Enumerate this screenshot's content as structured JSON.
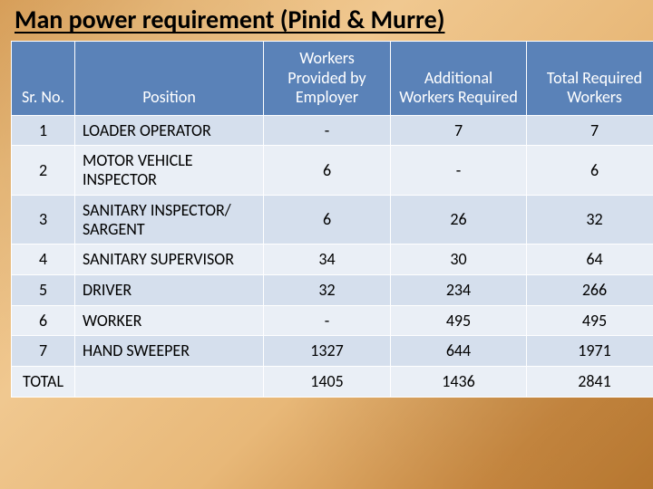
{
  "title": "Man power requirement (Pinid & Murre)",
  "table": {
    "columns": [
      {
        "key": "sr",
        "label": "Sr. No.",
        "class": "col-sr"
      },
      {
        "key": "pos",
        "label": "Position",
        "class": "col-pos"
      },
      {
        "key": "w1",
        "label": "Workers Provided by Employer",
        "class": "col-w1"
      },
      {
        "key": "w2",
        "label": "Additional Workers Required",
        "class": "col-w2"
      },
      {
        "key": "w3",
        "label": "Total Required Workers",
        "class": "col-w3"
      }
    ],
    "rows": [
      {
        "sr": "1",
        "pos": "LOADER OPERATOR",
        "w1": "-",
        "w2": "7",
        "w3": "7"
      },
      {
        "sr": "2",
        "pos": "MOTOR VEHICLE INSPECTOR",
        "w1": "6",
        "w2": "-",
        "w3": "6"
      },
      {
        "sr": "3",
        "pos": "SANITARY INSPECTOR/ SARGENT",
        "w1": "6",
        "w2": "26",
        "w3": "32"
      },
      {
        "sr": "4",
        "pos": "SANITARY SUPERVISOR",
        "w1": "34",
        "w2": "30",
        "w3": "64"
      },
      {
        "sr": "5",
        "pos": "DRIVER",
        "w1": "32",
        "w2": "234",
        "w3": "266"
      },
      {
        "sr": "6",
        "pos": "WORKER",
        "w1": "-",
        "w2": "495",
        "w3": "495"
      },
      {
        "sr": "7",
        "pos": "HAND SWEEPER",
        "w1": "1327",
        "w2": "644",
        "w3": "1971"
      }
    ],
    "total": {
      "sr": "TOTAL",
      "pos": "",
      "w1": "1405",
      "w2": "1436",
      "w3": "2841"
    },
    "header_bg": "#5a82b8",
    "row_odd_bg": "#d5dfed",
    "row_even_bg": "#eaeff6",
    "border_color": "#ffffff",
    "text_color": "#000000",
    "header_text_color": "#ffffff",
    "fontsize": 18,
    "header_fontsize": 18,
    "title_fontsize": 28
  },
  "background": {
    "gradient_stops": [
      "#d9a05a",
      "#e8b878",
      "#f0c890",
      "#e8b878",
      "#c88840",
      "#b87830"
    ]
  }
}
